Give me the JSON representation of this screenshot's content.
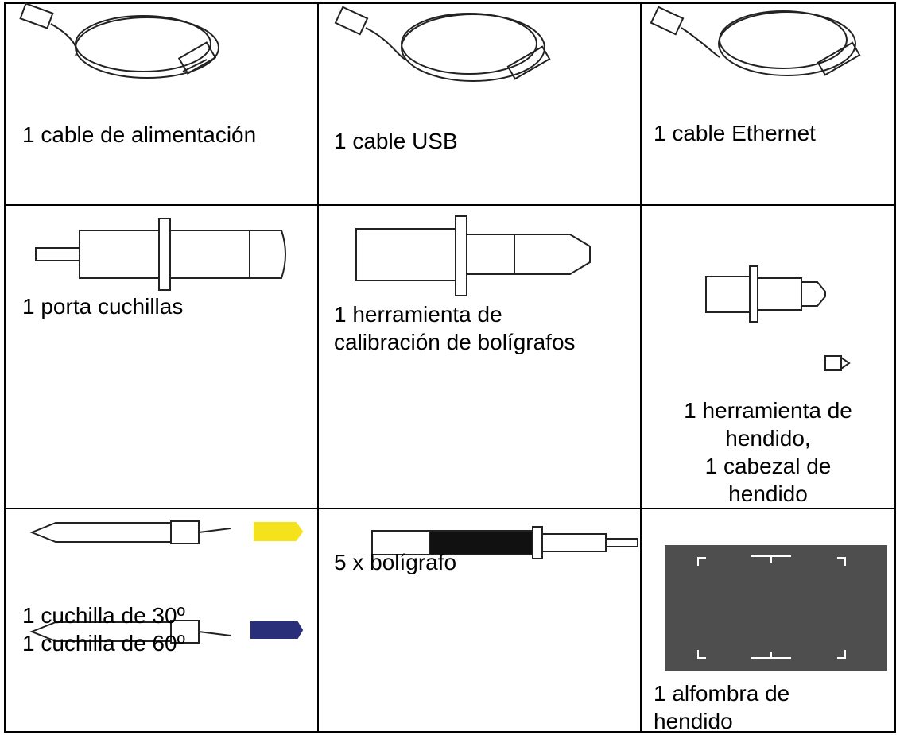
{
  "table": {
    "rows": [
      [
        [
          "1 cable de alimentación"
        ],
        [
          "1 cable USB"
        ],
        [
          "1 cable Ethernet"
        ]
      ],
      [
        [
          "1 porta cuchillas"
        ],
        [
          "1 herramienta de",
          "calibración de bolígrafos"
        ],
        [
          "1 herramienta de",
          "hendido,",
          "1 cabezal de",
          "hendido"
        ]
      ],
      [
        [
          "1 cuchilla de 30º",
          "1 cuchilla de 60º"
        ],
        [
          "5 x bolígrafo"
        ],
        [
          "1 alfombra de",
          "hendido"
        ]
      ]
    ]
  }
}
